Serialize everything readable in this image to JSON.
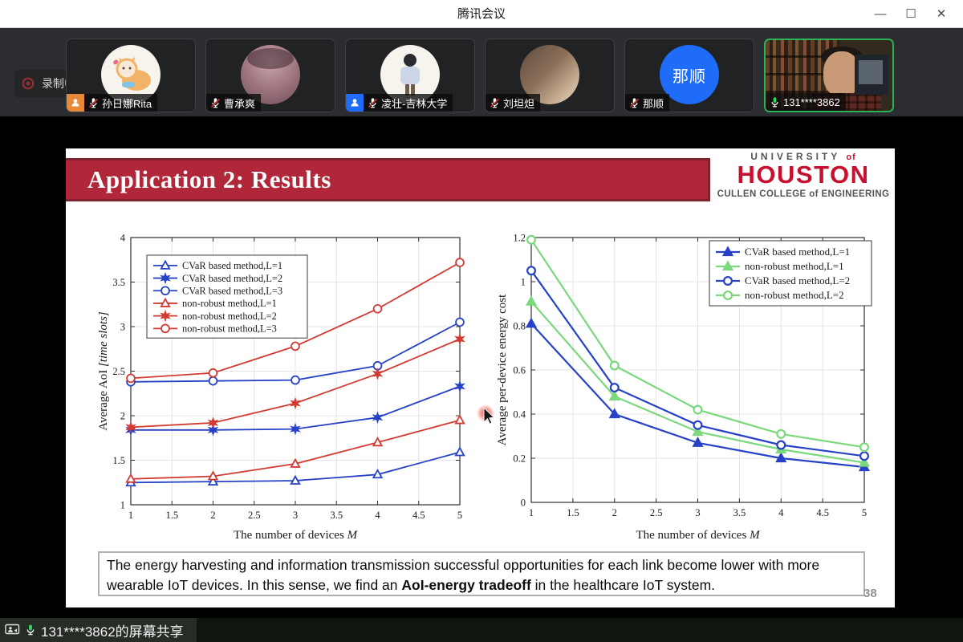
{
  "window": {
    "title": "腾讯会议",
    "controls": {
      "minimize": "—",
      "maximize": "☐",
      "close": "✕"
    }
  },
  "recording": {
    "label": "录制中"
  },
  "participants": [
    {
      "name": "孙日娜Rita",
      "mic": "muted",
      "avatar": "cat-illustration",
      "badge": "orange-person"
    },
    {
      "name": "曹承爽",
      "mic": "muted",
      "avatar": "portrait-photo"
    },
    {
      "name": "凌壮-吉林大学",
      "mic": "muted",
      "avatar": "person-illustration",
      "badge": "blue-person"
    },
    {
      "name": "刘坦炟",
      "mic": "muted",
      "avatar": "portrait-photo"
    },
    {
      "name": "那顺",
      "mic": "muted",
      "avatar": "name-circle",
      "avatar_text": "那顺"
    },
    {
      "name": "131****3862",
      "mic": "active",
      "avatar": "live-video",
      "active_speaker": true
    }
  ],
  "slide": {
    "title": "Application 2: Results",
    "logo": {
      "line1": "UNIVERSITY",
      "line1_of": "of",
      "line2": "HOUSTON",
      "line3": "CULLEN COLLEGE of ENGINEERING"
    },
    "caption": {
      "part1": "The energy harvesting and information transmission successful opportunities for each link become lower with more wearable IoT devices. In this sense, we find an ",
      "bold": "AoI-energy tradeoff",
      "part2": " in the healthcare IoT system."
    },
    "page_number": "38"
  },
  "chart_data": [
    {
      "type": "line",
      "title": "",
      "xlabel": "The number of devices M",
      "ylabel": "Average AoI [time slots]",
      "xlabel_parts": [
        {
          "t": "The number of devices ",
          "i": false
        },
        {
          "t": "M",
          "i": true
        }
      ],
      "ylabel_parts": [
        {
          "t": "Average AoI ",
          "i": false
        },
        {
          "t": "[time slots]",
          "i": true
        }
      ],
      "x": [
        1,
        2,
        3,
        4,
        5
      ],
      "xlim": [
        1,
        5
      ],
      "ylim": [
        1,
        4
      ],
      "xticks": [
        1,
        1.5,
        2,
        2.5,
        3,
        3.5,
        4,
        4.5,
        5
      ],
      "yticks": [
        1,
        1.5,
        2,
        2.5,
        3,
        3.5,
        4
      ],
      "grid": true,
      "legend_position": "top-left",
      "series": [
        {
          "name": "CVaR based method,L=1",
          "color": "#2742c6",
          "marker": "triangle",
          "fill": false,
          "values": [
            1.25,
            1.26,
            1.27,
            1.34,
            1.59
          ]
        },
        {
          "name": "CVaR based method,L=2",
          "color": "#2742c6",
          "marker": "star",
          "fill": true,
          "values": [
            1.84,
            1.84,
            1.85,
            1.98,
            2.33
          ]
        },
        {
          "name": "CVaR based method,L=3",
          "color": "#2742c6",
          "marker": "circle",
          "fill": false,
          "values": [
            2.38,
            2.39,
            2.4,
            2.56,
            3.05
          ]
        },
        {
          "name": "non-robust method,L=1",
          "color": "#d23b31",
          "marker": "triangle",
          "fill": false,
          "values": [
            1.29,
            1.32,
            1.46,
            1.7,
            1.95
          ]
        },
        {
          "name": "non-robust method,L=2",
          "color": "#d23b31",
          "marker": "star",
          "fill": true,
          "values": [
            1.87,
            1.92,
            2.14,
            2.47,
            2.86
          ]
        },
        {
          "name": "non-robust method,L=3",
          "color": "#d23b31",
          "marker": "circle",
          "fill": false,
          "values": [
            2.42,
            2.48,
            2.78,
            3.2,
            3.72
          ]
        }
      ]
    },
    {
      "type": "line",
      "title": "",
      "xlabel": "The number of devices M",
      "ylabel": "Average per-device energy cost",
      "xlabel_parts": [
        {
          "t": "The number of devices ",
          "i": false
        },
        {
          "t": "M",
          "i": true
        }
      ],
      "ylabel_parts": [
        {
          "t": "Average per-device energy cost",
          "i": false
        }
      ],
      "x": [
        1,
        2,
        3,
        4,
        5
      ],
      "xlim": [
        1,
        5
      ],
      "ylim": [
        0,
        1.2
      ],
      "xticks": [
        1,
        1.5,
        2,
        2.5,
        3,
        3.5,
        4,
        4.5,
        5
      ],
      "yticks": [
        0,
        0.2,
        0.4,
        0.6,
        0.8,
        1,
        1.2
      ],
      "grid": true,
      "legend_position": "top-right",
      "series": [
        {
          "name": "CVaR based method,L=1",
          "color": "#2742c6",
          "marker": "triangle",
          "fill": true,
          "values": [
            0.81,
            0.4,
            0.27,
            0.2,
            0.16
          ]
        },
        {
          "name": "non-robust method,L=1",
          "color": "#7cd87c",
          "marker": "triangle",
          "fill": true,
          "values": [
            0.91,
            0.48,
            0.32,
            0.24,
            0.18
          ]
        },
        {
          "name": "CVaR based method,L=2",
          "color": "#2742c6",
          "marker": "circle",
          "fill": false,
          "values": [
            1.05,
            0.52,
            0.35,
            0.26,
            0.21
          ]
        },
        {
          "name": "non-robust method,L=2",
          "color": "#7cd87c",
          "marker": "circle",
          "fill": false,
          "values": [
            1.19,
            0.62,
            0.42,
            0.31,
            0.25
          ]
        }
      ]
    }
  ],
  "statusbar": {
    "label": "131****3862的屏幕共享"
  },
  "colors": {
    "banner_red": "#b0273a",
    "houston_red": "#c8102e",
    "active_speaker_green": "#2bb357",
    "mic_active_green": "#35d463",
    "record_red": "#8d2f2f",
    "avatar_blue": "#1f6cf9",
    "series_blue": "#2742c6",
    "series_red": "#d23b31",
    "series_green": "#7cd87c"
  }
}
